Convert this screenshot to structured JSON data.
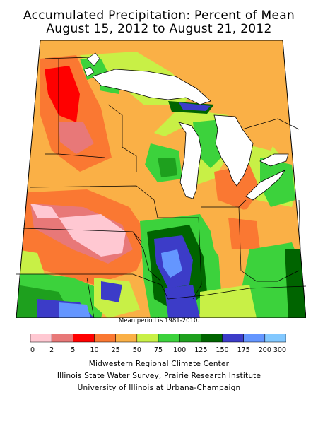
{
  "title": {
    "line1": "Accumulated Precipitation: Percent of Mean",
    "line2": "August 15, 2012 to August 21, 2012"
  },
  "note": "Mean period is 1981-2010.",
  "legend": {
    "bins": [
      {
        "color": "#ffc8d2"
      },
      {
        "color": "#e87878"
      },
      {
        "color": "#ff0000"
      },
      {
        "color": "#fa7832"
      },
      {
        "color": "#fab046"
      },
      {
        "color": "#c8f046"
      },
      {
        "color": "#3cd23c"
      },
      {
        "color": "#1ea01e"
      },
      {
        "color": "#006400"
      },
      {
        "color": "#3c3cc8"
      },
      {
        "color": "#6496ff"
      },
      {
        "color": "#82c8ff"
      }
    ],
    "ticks": [
      "0",
      "2",
      "5",
      "10",
      "25",
      "50",
      "75",
      "100",
      "125",
      "150",
      "175",
      "200",
      "300"
    ]
  },
  "credits": [
    "Midwestern Regional Climate Center",
    "Illinois State Water Survey, Prairie Research Institute",
    "University of Illinois at Urbana-Champaign"
  ]
}
